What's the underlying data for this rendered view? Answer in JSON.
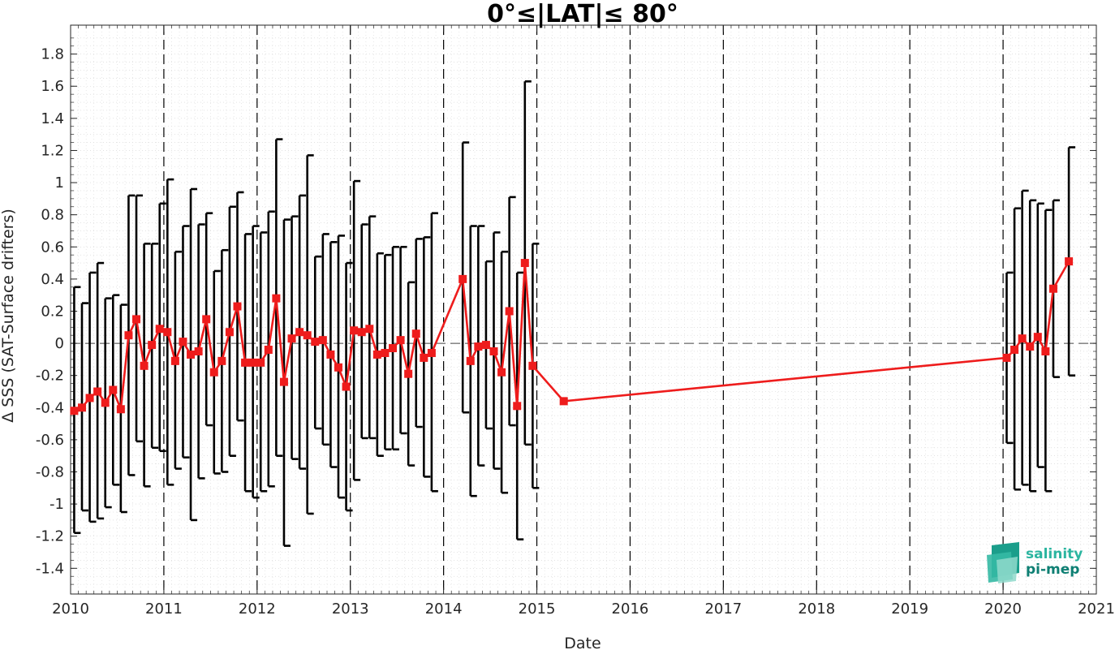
{
  "chart_data": {
    "type": "line",
    "title": "0°≤|LAT|≤ 80°",
    "xlabel": "Date",
    "ylabel": "Δ SSS (SAT-Surface drifters)",
    "xlim": [
      "2010-01-01",
      "2021-01-01"
    ],
    "ylim": [
      -1.56,
      1.98
    ],
    "x_ticks": [
      "2010",
      "2011",
      "2012",
      "2013",
      "2014",
      "2015",
      "2016",
      "2017",
      "2018",
      "2019",
      "2020",
      "2021"
    ],
    "y_ticks": [
      -1.4,
      -1.2,
      -1,
      -0.8,
      -0.6,
      -0.4,
      -0.2,
      0,
      0.2,
      0.4,
      0.6,
      0.8,
      1,
      1.2,
      1.4,
      1.6,
      1.8
    ],
    "y_tick_labels": [
      "-1.4",
      "-1.2",
      "-1",
      "-0.8",
      "-0.6",
      "-0.4",
      "-0.2",
      "0",
      "0.2",
      "0.4",
      "0.6",
      "0.8",
      "1",
      "1.2",
      "1.4",
      "1.6",
      "1.8"
    ],
    "grid": "dotted minor grid",
    "vertical_dashed_lines_at": [
      "2011",
      "2012",
      "2013",
      "2014",
      "2015",
      "2016",
      "2017",
      "2018",
      "2019",
      "2020"
    ],
    "zero_line": "dashed",
    "series": [
      {
        "color": "#ee1c1c",
        "marker": "square",
        "error_bar_color": "#000000",
        "points": [
          {
            "x": "2010-01-15",
            "y": -0.42,
            "lo": -1.18,
            "hi": 0.35
          },
          {
            "x": "2010-02-15",
            "y": -0.4,
            "lo": -1.04,
            "hi": 0.25
          },
          {
            "x": "2010-03-15",
            "y": -0.34,
            "lo": -1.11,
            "hi": 0.44
          },
          {
            "x": "2010-04-15",
            "y": -0.3,
            "lo": -1.09,
            "hi": 0.5
          },
          {
            "x": "2010-05-15",
            "y": -0.37,
            "lo": -1.02,
            "hi": 0.28
          },
          {
            "x": "2010-06-15",
            "y": -0.29,
            "lo": -0.88,
            "hi": 0.3
          },
          {
            "x": "2010-07-15",
            "y": -0.41,
            "lo": -1.05,
            "hi": 0.24
          },
          {
            "x": "2010-08-15",
            "y": 0.05,
            "lo": -0.82,
            "hi": 0.92
          },
          {
            "x": "2010-09-15",
            "y": 0.15,
            "lo": -0.61,
            "hi": 0.92
          },
          {
            "x": "2010-10-15",
            "y": -0.14,
            "lo": -0.89,
            "hi": 0.62
          },
          {
            "x": "2010-11-15",
            "y": -0.01,
            "lo": -0.65,
            "hi": 0.62
          },
          {
            "x": "2010-12-15",
            "y": 0.09,
            "lo": -0.67,
            "hi": 0.87
          },
          {
            "x": "2011-01-15",
            "y": 0.07,
            "lo": -0.88,
            "hi": 1.02
          },
          {
            "x": "2011-02-15",
            "y": -0.11,
            "lo": -0.78,
            "hi": 0.57
          },
          {
            "x": "2011-03-15",
            "y": 0.01,
            "lo": -0.71,
            "hi": 0.73
          },
          {
            "x": "2011-04-15",
            "y": -0.07,
            "lo": -1.1,
            "hi": 0.96
          },
          {
            "x": "2011-05-15",
            "y": -0.05,
            "lo": -0.84,
            "hi": 0.74
          },
          {
            "x": "2011-06-15",
            "y": 0.15,
            "lo": -0.51,
            "hi": 0.81
          },
          {
            "x": "2011-07-15",
            "y": -0.18,
            "lo": -0.81,
            "hi": 0.45
          },
          {
            "x": "2011-08-15",
            "y": -0.11,
            "lo": -0.8,
            "hi": 0.58
          },
          {
            "x": "2011-09-15",
            "y": 0.07,
            "lo": -0.7,
            "hi": 0.85
          },
          {
            "x": "2011-10-15",
            "y": 0.23,
            "lo": -0.48,
            "hi": 0.94
          },
          {
            "x": "2011-11-15",
            "y": -0.12,
            "lo": -0.92,
            "hi": 0.68
          },
          {
            "x": "2011-12-15",
            "y": -0.12,
            "lo": -0.96,
            "hi": 0.73
          },
          {
            "x": "2012-01-15",
            "y": -0.12,
            "lo": -0.92,
            "hi": 0.69
          },
          {
            "x": "2012-02-15",
            "y": -0.04,
            "lo": -0.89,
            "hi": 0.82
          },
          {
            "x": "2012-03-15",
            "y": 0.28,
            "lo": -0.7,
            "hi": 1.27
          },
          {
            "x": "2012-04-15",
            "y": -0.24,
            "lo": -1.26,
            "hi": 0.77
          },
          {
            "x": "2012-05-15",
            "y": 0.03,
            "lo": -0.72,
            "hi": 0.79
          },
          {
            "x": "2012-06-15",
            "y": 0.07,
            "lo": -0.78,
            "hi": 0.92
          },
          {
            "x": "2012-07-15",
            "y": 0.05,
            "lo": -1.06,
            "hi": 1.17
          },
          {
            "x": "2012-08-15",
            "y": 0.01,
            "lo": -0.53,
            "hi": 0.54
          },
          {
            "x": "2012-09-15",
            "y": 0.02,
            "lo": -0.63,
            "hi": 0.68
          },
          {
            "x": "2012-10-15",
            "y": -0.07,
            "lo": -0.77,
            "hi": 0.63
          },
          {
            "x": "2012-11-15",
            "y": -0.15,
            "lo": -0.96,
            "hi": 0.67
          },
          {
            "x": "2012-12-15",
            "y": -0.27,
            "lo": -1.04,
            "hi": 0.5
          },
          {
            "x": "2013-01-15",
            "y": 0.08,
            "lo": -0.85,
            "hi": 1.01
          },
          {
            "x": "2013-02-15",
            "y": 0.07,
            "lo": -0.59,
            "hi": 0.74
          },
          {
            "x": "2013-03-15",
            "y": 0.09,
            "lo": -0.59,
            "hi": 0.79
          },
          {
            "x": "2013-04-15",
            "y": -0.07,
            "lo": -0.7,
            "hi": 0.56
          },
          {
            "x": "2013-05-15",
            "y": -0.06,
            "lo": -0.66,
            "hi": 0.55
          },
          {
            "x": "2013-06-15",
            "y": -0.03,
            "lo": -0.66,
            "hi": 0.6
          },
          {
            "x": "2013-07-15",
            "y": 0.02,
            "lo": -0.56,
            "hi": 0.6
          },
          {
            "x": "2013-08-15",
            "y": -0.19,
            "lo": -0.76,
            "hi": 0.38
          },
          {
            "x": "2013-09-15",
            "y": 0.06,
            "lo": -0.52,
            "hi": 0.65
          },
          {
            "x": "2013-10-15",
            "y": -0.09,
            "lo": -0.83,
            "hi": 0.66
          },
          {
            "x": "2013-11-15",
            "y": -0.06,
            "lo": -0.92,
            "hi": 0.81
          },
          {
            "x": "2014-03-15",
            "y": 0.4,
            "lo": -0.43,
            "hi": 1.25
          },
          {
            "x": "2014-04-15",
            "y": -0.11,
            "lo": -0.95,
            "hi": 0.73
          },
          {
            "x": "2014-05-15",
            "y": -0.02,
            "lo": -0.76,
            "hi": 0.73
          },
          {
            "x": "2014-06-15",
            "y": -0.01,
            "lo": -0.53,
            "hi": 0.51
          },
          {
            "x": "2014-07-15",
            "y": -0.05,
            "lo": -0.78,
            "hi": 0.69
          },
          {
            "x": "2014-08-15",
            "y": -0.18,
            "lo": -0.93,
            "hi": 0.57
          },
          {
            "x": "2014-09-15",
            "y": 0.2,
            "lo": -0.51,
            "hi": 0.91
          },
          {
            "x": "2014-10-15",
            "y": -0.39,
            "lo": -1.22,
            "hi": 0.44
          },
          {
            "x": "2014-11-15",
            "y": 0.5,
            "lo": -0.63,
            "hi": 1.63
          },
          {
            "x": "2014-12-15",
            "y": -0.14,
            "lo": -0.9,
            "hi": 0.62
          },
          {
            "x": "2015-04-15",
            "y": -0.36
          },
          {
            "x": "2020-01-15",
            "y": -0.09,
            "lo": -0.62,
            "hi": 0.44
          },
          {
            "x": "2020-02-15",
            "y": -0.04,
            "lo": -0.91,
            "hi": 0.84
          },
          {
            "x": "2020-03-15",
            "y": 0.03,
            "lo": -0.88,
            "hi": 0.95
          },
          {
            "x": "2020-04-15",
            "y": -0.02,
            "lo": -0.92,
            "hi": 0.89
          },
          {
            "x": "2020-05-15",
            "y": 0.04,
            "lo": -0.77,
            "hi": 0.87
          },
          {
            "x": "2020-06-15",
            "y": -0.05,
            "lo": -0.92,
            "hi": 0.83
          },
          {
            "x": "2020-07-15",
            "y": 0.34,
            "lo": -0.21,
            "hi": 0.89
          },
          {
            "x": "2020-09-15",
            "y": 0.51,
            "lo": -0.2,
            "hi": 1.22
          }
        ]
      }
    ]
  },
  "logo": {
    "line1": "salinity",
    "line2": "pi-mep",
    "colors": [
      "#2bb5a0",
      "#0e7f73"
    ]
  }
}
